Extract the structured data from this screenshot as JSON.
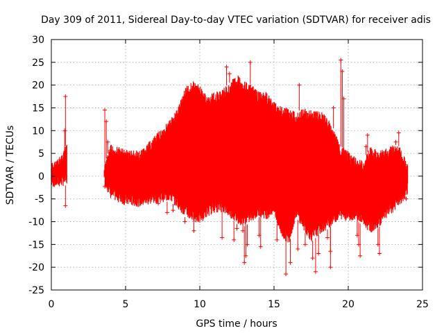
{
  "chart_data": {
    "type": "scatter",
    "title": "Day 309 of 2011, Sidereal Day-to-day VTEC variation (SDTVAR) for receiver adis",
    "xlabel": "GPS time / hours",
    "ylabel": "SDTVAR / TECUs",
    "xlim": [
      0,
      25
    ],
    "ylim": [
      -25,
      30
    ],
    "xticks": [
      "0",
      "5",
      "10",
      "15",
      "20",
      "25"
    ],
    "yticks": [
      "-25",
      "-20",
      "-15",
      "-10",
      "-5",
      "0",
      "5",
      "10",
      "15",
      "20",
      "25",
      "30"
    ],
    "grid": true,
    "series_color": "#ff0000",
    "envelope": {
      "x": [
        0.0,
        0.5,
        1.0,
        3.6,
        4.0,
        5.0,
        6.0,
        7.0,
        8.0,
        8.5,
        9.0,
        9.5,
        10.0,
        10.5,
        11.0,
        11.5,
        12.0,
        12.5,
        13.0,
        13.5,
        14.0,
        14.5,
        15.0,
        15.5,
        16.0,
        16.5,
        17.0,
        17.5,
        18.0,
        18.5,
        19.0,
        19.5,
        20.0,
        20.5,
        21.0,
        21.5,
        22.0,
        22.5,
        23.0,
        23.5,
        24.0
      ],
      "upper": [
        3.0,
        4.0,
        7.0,
        3.0,
        7.0,
        6.0,
        5.5,
        9.0,
        12.5,
        15.0,
        19.5,
        21.0,
        20.0,
        17.5,
        18.5,
        19.0,
        20.5,
        22.5,
        21.0,
        20.0,
        18.5,
        18.5,
        16.5,
        15.5,
        15.0,
        14.0,
        15.0,
        14.5,
        14.5,
        13.5,
        10.5,
        6.5,
        5.5,
        4.0,
        3.5,
        6.5,
        5.5,
        6.0,
        7.0,
        6.5,
        2.5
      ],
      "lower": [
        -2.5,
        -2.5,
        -2.0,
        -2.0,
        -5.0,
        -6.5,
        -6.8,
        -6.0,
        -5.5,
        -7.0,
        -9.0,
        -10.0,
        -10.5,
        -9.0,
        -8.0,
        -8.0,
        -9.0,
        -10.5,
        -11.0,
        -10.0,
        -9.0,
        -9.5,
        -8.5,
        -13.5,
        -15.0,
        -9.0,
        -12.0,
        -14.5,
        -13.0,
        -12.0,
        -10.5,
        -9.5,
        -10.0,
        -9.5,
        -11.0,
        -12.5,
        -11.5,
        -9.5,
        -8.0,
        -6.5,
        -4.0
      ]
    },
    "outliers": [
      [
        0.95,
        17.5
      ],
      [
        0.95,
        -6.5
      ],
      [
        0.9,
        10.0
      ],
      [
        3.6,
        14.5
      ],
      [
        3.6,
        -2.3
      ],
      [
        3.7,
        12.0
      ],
      [
        3.8,
        7.5
      ],
      [
        7.2,
        -6.0
      ],
      [
        7.8,
        -8.0
      ],
      [
        8.2,
        -7.5
      ],
      [
        9.0,
        -10.0
      ],
      [
        9.6,
        -12.0
      ],
      [
        11.5,
        -13.5
      ],
      [
        11.8,
        24.0
      ],
      [
        12.0,
        22.5
      ],
      [
        12.3,
        -14.0
      ],
      [
        12.5,
        -11.5
      ],
      [
        12.9,
        -12.0
      ],
      [
        13.4,
        25.0
      ],
      [
        13.0,
        -19.0
      ],
      [
        13.1,
        -17.5
      ],
      [
        13.2,
        -15.0
      ],
      [
        14.0,
        -13.0
      ],
      [
        14.1,
        -15.5
      ],
      [
        15.2,
        -14.0
      ],
      [
        15.8,
        -21.5
      ],
      [
        16.1,
        -19.0
      ],
      [
        16.6,
        -16.0
      ],
      [
        16.7,
        20.0
      ],
      [
        17.1,
        -15.0
      ],
      [
        17.6,
        -18.0
      ],
      [
        17.8,
        -21.0
      ],
      [
        18.0,
        -17.0
      ],
      [
        18.6,
        -13.5
      ],
      [
        18.8,
        -20.0
      ],
      [
        18.8,
        -16.5
      ],
      [
        19.0,
        15.0
      ],
      [
        19.5,
        25.5
      ],
      [
        19.6,
        23.0
      ],
      [
        19.7,
        17.0
      ],
      [
        20.4,
        1.5
      ],
      [
        20.5,
        2.5
      ],
      [
        20.7,
        -15.0
      ],
      [
        20.8,
        -17.5
      ],
      [
        20.6,
        -13.0
      ],
      [
        21.3,
        9.0
      ],
      [
        21.2,
        6.5
      ],
      [
        21.8,
        5.0
      ],
      [
        22.0,
        -15.0
      ],
      [
        22.1,
        -17.0
      ],
      [
        22.3,
        4.5
      ],
      [
        23.2,
        7.5
      ],
      [
        23.4,
        9.5
      ],
      [
        23.0,
        -6.5
      ],
      [
        23.8,
        2.5
      ],
      [
        23.9,
        -5.0
      ],
      [
        23.7,
        -3.0
      ]
    ]
  }
}
